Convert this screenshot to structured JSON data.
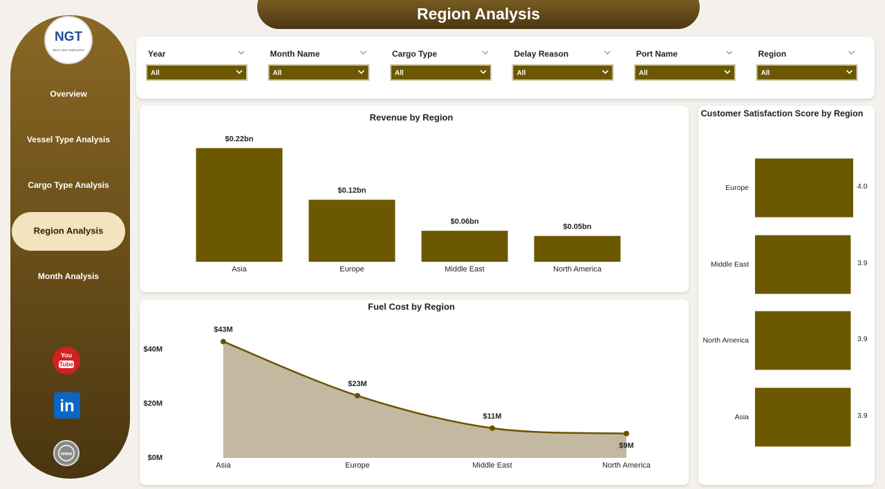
{
  "header": {
    "title": "Region Analysis"
  },
  "logo": {
    "name": "NGT",
    "tagline": "NEXT GEN TEMPLATES"
  },
  "nav": {
    "items": [
      "Overview",
      "Vessel Type Analysis",
      "Cargo Type Analysis",
      "Region Analysis",
      "Month Analysis"
    ],
    "active": 3
  },
  "icons": {
    "youtube_top": "You",
    "youtube_bottom": "Tube",
    "linkedin": "in",
    "web": "www"
  },
  "filters": [
    {
      "label": "Year",
      "value": "All"
    },
    {
      "label": "Month Name",
      "value": "All"
    },
    {
      "label": "Cargo Type",
      "value": "All"
    },
    {
      "label": "Delay Reason",
      "value": "All"
    },
    {
      "label": "Port Name",
      "value": "All"
    },
    {
      "label": "Region",
      "value": "All"
    }
  ],
  "chart_data": [
    {
      "type": "bar",
      "title": "Revenue by Region",
      "categories": [
        "Asia",
        "Europe",
        "Middle East",
        "North America"
      ],
      "values": [
        0.22,
        0.12,
        0.06,
        0.05
      ],
      "value_labels": [
        "$0.22bn",
        "$0.12bn",
        "$0.06bn",
        "$0.05bn"
      ],
      "ylim": [
        0,
        0.25
      ],
      "color": "#6b5800"
    },
    {
      "type": "area",
      "title": "Fuel Cost by Region",
      "categories": [
        "Asia",
        "Europe",
        "Middle East",
        "North America"
      ],
      "values": [
        43,
        23,
        11,
        9
      ],
      "value_labels": [
        "$43M",
        "$23M",
        "$11M",
        "$9M"
      ],
      "ylim": [
        0,
        48
      ],
      "yticks": [
        {
          "value": 0,
          "label": "$0M"
        },
        {
          "value": 20,
          "label": "$20M"
        },
        {
          "value": 40,
          "label": "$40M"
        }
      ],
      "color": "#6b5200",
      "fill": "#c3b9a1"
    },
    {
      "type": "bar",
      "horizontal": true,
      "title": "Customer Satisfaction Score by Region",
      "categories": [
        "Europe",
        "Middle East",
        "North America",
        "Asia"
      ],
      "values": [
        4.0,
        3.9,
        3.9,
        3.9
      ],
      "value_labels": [
        "4.0",
        "3.9",
        "3.9",
        "3.9"
      ],
      "xlim": [
        0,
        4
      ],
      "color": "#6b5800"
    }
  ]
}
